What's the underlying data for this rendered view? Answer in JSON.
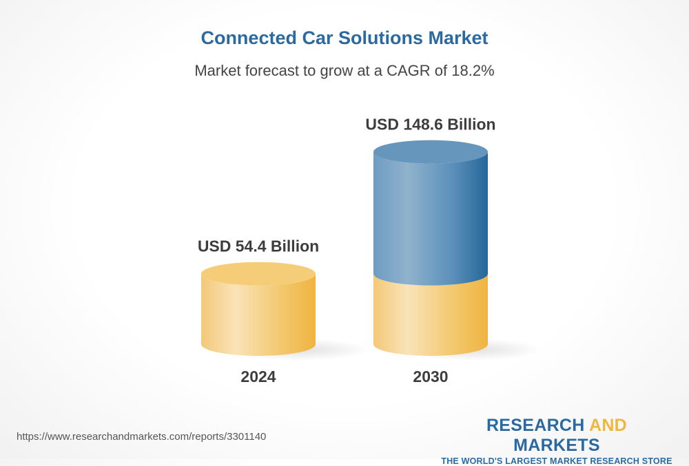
{
  "chart_data": {
    "type": "bar",
    "style": "3d-cylinder",
    "title": "Connected Car Solutions Market",
    "subtitle": "Market forecast to grow at a CAGR of 18.2%",
    "categories": [
      "2024",
      "2030"
    ],
    "values": [
      54.4,
      148.6
    ],
    "unit": "USD Billion",
    "data_labels": [
      "USD 54.4 Billion",
      "USD 148.6 Billion"
    ],
    "colors": {
      "base": "#f3c35e",
      "growth": "#2a6aa0"
    },
    "grid": false
  },
  "footer": {
    "url": "https://www.researchandmarkets.com/reports/3301140",
    "logo": {
      "word1": "RESEARCH",
      "word2": "AND",
      "word3": "MARKETS",
      "tagline": "THE WORLD'S LARGEST MARKET RESEARCH STORE"
    }
  }
}
